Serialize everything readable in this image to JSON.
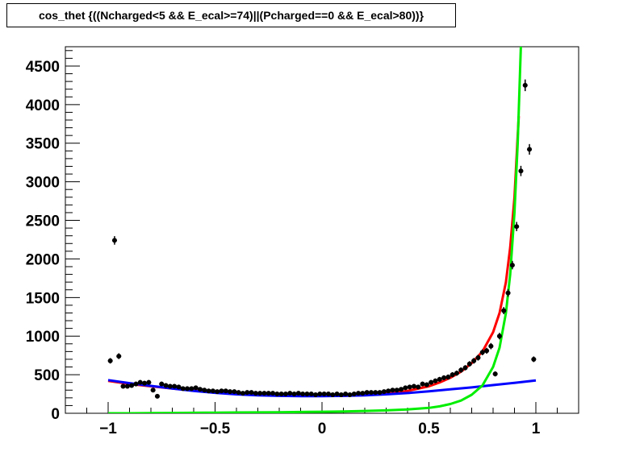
{
  "chart_data": {
    "type": "scatter",
    "title": "cos_thet {((Ncharged<5 && E_ecal>=74)||(Pcharged==0 && E_ecal>80))}",
    "xlabel": "",
    "ylabel": "",
    "xlim": [
      -1.2,
      1.2
    ],
    "ylim": [
      0,
      4750
    ],
    "x_ticks": [
      "−1",
      "−0.5",
      "0",
      "0.5",
      "1"
    ],
    "x_tick_values": [
      -1,
      -0.5,
      0,
      0.5,
      1
    ],
    "y_ticks": [
      "0",
      "500",
      "1000",
      "1500",
      "2000",
      "2500",
      "3000",
      "3500",
      "4000",
      "4500"
    ],
    "y_tick_values": [
      0,
      500,
      1000,
      1500,
      2000,
      2500,
      3000,
      3500,
      4000,
      4500
    ],
    "grid": false,
    "legend": "none",
    "series": [
      {
        "kind": "points_with_errors",
        "color": "#000000",
        "x": [
          -0.99,
          -0.97,
          -0.95,
          -0.93,
          -0.91,
          -0.89,
          -0.87,
          -0.85,
          -0.83,
          -0.81,
          -0.79,
          -0.77,
          -0.75,
          -0.73,
          -0.71,
          -0.69,
          -0.67,
          -0.65,
          -0.63,
          -0.61,
          -0.59,
          -0.57,
          -0.55,
          -0.53,
          -0.51,
          -0.49,
          -0.47,
          -0.45,
          -0.43,
          -0.41,
          -0.39,
          -0.37,
          -0.35,
          -0.33,
          -0.31,
          -0.29,
          -0.27,
          -0.25,
          -0.23,
          -0.21,
          -0.19,
          -0.17,
          -0.15,
          -0.13,
          -0.11,
          -0.09,
          -0.07,
          -0.05,
          -0.03,
          -0.01,
          0.01,
          0.03,
          0.05,
          0.07,
          0.09,
          0.11,
          0.13,
          0.15,
          0.17,
          0.19,
          0.21,
          0.23,
          0.25,
          0.27,
          0.29,
          0.31,
          0.33,
          0.35,
          0.37,
          0.39,
          0.41,
          0.43,
          0.45,
          0.47,
          0.49,
          0.51,
          0.53,
          0.55,
          0.57,
          0.59,
          0.61,
          0.63,
          0.65,
          0.67,
          0.69,
          0.71,
          0.73,
          0.75,
          0.77,
          0.79,
          0.81,
          0.83,
          0.85,
          0.87,
          0.89,
          0.91,
          0.93,
          0.95,
          0.97,
          0.99
        ],
        "y": [
          680,
          2240,
          740,
          350,
          350,
          360,
          380,
          400,
          390,
          400,
          300,
          220,
          380,
          360,
          350,
          350,
          340,
          320,
          320,
          320,
          330,
          310,
          300,
          290,
          290,
          280,
          290,
          290,
          280,
          280,
          270,
          260,
          270,
          270,
          260,
          260,
          260,
          260,
          260,
          250,
          250,
          250,
          260,
          250,
          260,
          250,
          250,
          250,
          240,
          250,
          250,
          250,
          240,
          250,
          240,
          250,
          240,
          250,
          260,
          260,
          270,
          270,
          270,
          270,
          280,
          290,
          300,
          300,
          310,
          330,
          340,
          350,
          340,
          380,
          370,
          400,
          420,
          440,
          460,
          470,
          500,
          520,
          560,
          590,
          640,
          680,
          720,
          790,
          810,
          870,
          510,
          1000,
          1330,
          1560,
          1920,
          2420,
          3140,
          4250,
          3420,
          700
        ],
        "yerr": [
          25,
          45,
          27,
          18,
          18,
          18,
          19,
          20,
          19,
          20,
          17,
          15,
          19,
          19,
          18,
          18,
          18,
          17,
          17,
          17,
          18,
          17,
          17,
          17,
          17,
          16,
          17,
          17,
          16,
          16,
          16,
          16,
          16,
          16,
          16,
          16,
          16,
          16,
          16,
          16,
          16,
          16,
          16,
          16,
          16,
          16,
          16,
          16,
          15,
          16,
          16,
          16,
          15,
          16,
          15,
          16,
          15,
          16,
          16,
          16,
          16,
          16,
          16,
          16,
          17,
          17,
          17,
          17,
          17,
          18,
          18,
          18,
          18,
          19,
          19,
          20,
          20,
          21,
          21,
          22,
          22,
          23,
          24,
          24,
          25,
          26,
          27,
          28,
          28,
          30,
          22,
          32,
          36,
          40,
          44,
          49,
          56,
          65,
          58,
          26
        ]
      },
      {
        "kind": "fit_curve",
        "name": "",
        "color": "#ff0000",
        "x": [
          -1.0,
          -0.9,
          -0.8,
          -0.7,
          -0.6,
          -0.5,
          -0.4,
          -0.3,
          -0.2,
          -0.1,
          0.0,
          0.1,
          0.2,
          0.3,
          0.4,
          0.5,
          0.55,
          0.6,
          0.65,
          0.7,
          0.75,
          0.8,
          0.83,
          0.86,
          0.88,
          0.9,
          0.92
        ],
        "y": [
          420,
          380,
          350,
          320,
          295,
          275,
          258,
          245,
          235,
          228,
          225,
          227,
          235,
          255,
          290,
          350,
          400,
          460,
          540,
          650,
          800,
          1050,
          1300,
          1700,
          2150,
          2800,
          3850
        ]
      },
      {
        "kind": "fit_curve",
        "name": "",
        "color": "#0000ff",
        "x": [
          -1.0,
          -0.9,
          -0.8,
          -0.7,
          -0.6,
          -0.5,
          -0.4,
          -0.3,
          -0.2,
          -0.1,
          0.0,
          0.1,
          0.2,
          0.3,
          0.4,
          0.5,
          0.6,
          0.7,
          0.8,
          0.9,
          1.0
        ],
        "y": [
          430,
          390,
          355,
          320,
          290,
          265,
          245,
          232,
          225,
          222,
          222,
          225,
          232,
          245,
          262,
          285,
          310,
          335,
          365,
          395,
          425
        ]
      },
      {
        "kind": "fit_curve",
        "name": "",
        "color": "#00ee00",
        "x": [
          -1.0,
          -0.9,
          -0.8,
          -0.7,
          -0.6,
          -0.5,
          -0.4,
          -0.3,
          -0.2,
          -0.1,
          0.0,
          0.1,
          0.2,
          0.3,
          0.4,
          0.5,
          0.55,
          0.6,
          0.65,
          0.7,
          0.75,
          0.8,
          0.83,
          0.86,
          0.88,
          0.9,
          0.915,
          0.93
        ],
        "y": [
          0,
          0,
          2,
          4,
          6,
          8,
          10,
          12,
          14,
          17,
          20,
          24,
          30,
          38,
          50,
          70,
          90,
          120,
          165,
          240,
          360,
          600,
          850,
          1300,
          1800,
          2600,
          3500,
          4750
        ]
      }
    ]
  }
}
